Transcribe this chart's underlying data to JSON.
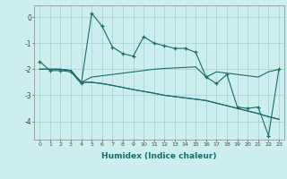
{
  "title": "",
  "xlabel": "Humidex (Indice chaleur)",
  "background_color": "#cceeed",
  "grid_color": "#aad4d3",
  "line_color": "#1a6b6b",
  "hours": [
    0,
    1,
    2,
    3,
    4,
    5,
    6,
    7,
    8,
    9,
    10,
    11,
    12,
    13,
    14,
    15,
    16,
    17,
    18,
    19,
    20,
    21,
    22,
    23
  ],
  "line1": [
    -1.7,
    -2.05,
    -2.05,
    -2.1,
    -2.55,
    0.15,
    -0.35,
    -1.15,
    -1.4,
    -1.5,
    -0.75,
    -1.0,
    -1.1,
    -1.2,
    -1.2,
    -1.35,
    -2.3,
    -2.55,
    -2.2,
    -3.45,
    -3.5,
    -3.45,
    -4.55,
    -2.0
  ],
  "line2": [
    -2.0,
    -2.0,
    -2.0,
    -2.05,
    -2.5,
    -2.3,
    -2.25,
    -2.2,
    -2.15,
    -2.1,
    -2.05,
    -2.0,
    -1.97,
    -1.95,
    -1.93,
    -1.91,
    -2.3,
    -2.1,
    -2.15,
    -2.2,
    -2.25,
    -2.3,
    -2.1,
    -2.0
  ],
  "line3": [
    -2.0,
    -2.0,
    -2.0,
    -2.05,
    -2.5,
    -2.5,
    -2.55,
    -2.62,
    -2.7,
    -2.78,
    -2.85,
    -2.92,
    -3.0,
    -3.05,
    -3.1,
    -3.15,
    -3.2,
    -3.3,
    -3.4,
    -3.5,
    -3.6,
    -3.7,
    -3.82,
    -3.92
  ],
  "line4": [
    -2.0,
    -2.0,
    -2.0,
    -2.05,
    -2.5,
    -2.5,
    -2.55,
    -2.62,
    -2.7,
    -2.78,
    -2.85,
    -2.92,
    -3.0,
    -3.05,
    -3.1,
    -3.15,
    -3.2,
    -3.3,
    -3.4,
    -3.5,
    -3.6,
    -3.7,
    -3.82,
    -3.92
  ],
  "ylim": [
    -4.7,
    0.45
  ],
  "yticks": [
    0,
    -1,
    -2,
    -3,
    -4
  ],
  "xlim": [
    -0.5,
    23.5
  ]
}
